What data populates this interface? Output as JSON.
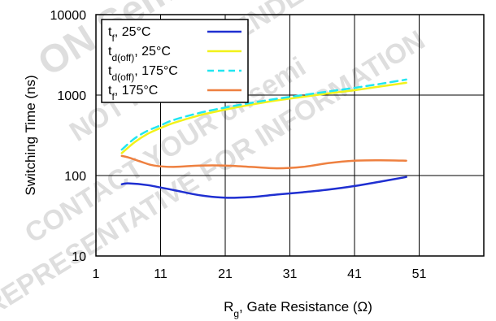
{
  "chart_data": {
    "type": "line",
    "xlabel": {
      "main": "R",
      "sub": "g",
      "rest": ", Gate Resistance (Ω)"
    },
    "ylabel": "Switching Time (ns)",
    "xlim": [
      1,
      61
    ],
    "ylim": [
      10,
      10000
    ],
    "yscale": "log",
    "grid": true,
    "legend_position": "top-left",
    "x_ticks": [
      1,
      11,
      21,
      31,
      41,
      51
    ],
    "y_ticks": [
      10,
      100,
      1000,
      10000
    ],
    "series": [
      {
        "name": "tf, 25°C",
        "legend": {
          "main": "t",
          "sub": "f",
          "rest": ", 25°C"
        },
        "color": "#1f2fd1",
        "dash": "solid",
        "x": [
          5,
          6,
          9,
          13,
          17,
          21,
          25,
          29,
          33,
          37,
          41,
          45,
          49
        ],
        "y": [
          78,
          80,
          76,
          66,
          57,
          53,
          54,
          58,
          62,
          67,
          74,
          84,
          96
        ]
      },
      {
        "name": "td(off), 25°C",
        "legend": {
          "main": "t",
          "sub": "d(off)",
          "rest": ", 25°C"
        },
        "color": "#f2f21a",
        "dash": "solid",
        "x": [
          5,
          7,
          9,
          11,
          13,
          17,
          21,
          25,
          29,
          33,
          37,
          41,
          45,
          49
        ],
        "y": [
          190,
          260,
          330,
          390,
          450,
          560,
          660,
          760,
          860,
          950,
          1050,
          1150,
          1280,
          1420
        ]
      },
      {
        "name": "td(off), 175°C",
        "legend": {
          "main": "t",
          "sub": "d(off)",
          "rest": ", 175°C"
        },
        "color": "#22e6f0",
        "dash": "dashed",
        "x": [
          5,
          7,
          9,
          11,
          13,
          17,
          21,
          25,
          29,
          33,
          37,
          41,
          45,
          49
        ],
        "y": [
          210,
          290,
          360,
          420,
          490,
          600,
          700,
          800,
          900,
          1000,
          1110,
          1230,
          1380,
          1560
        ]
      },
      {
        "name": "tf, 175°C",
        "legend": {
          "main": "t",
          "sub": "f",
          "rest": ", 175°C"
        },
        "color": "#ee8040",
        "dash": "solid",
        "x": [
          5,
          6,
          8,
          10,
          13,
          17,
          21,
          25,
          29,
          33,
          37,
          41,
          45,
          49
        ],
        "y": [
          175,
          168,
          148,
          133,
          128,
          133,
          133,
          128,
          123,
          128,
          143,
          153,
          155,
          153
        ]
      }
    ]
  },
  "watermark": {
    "lines": [
      "ON Semiconductor",
      "NOT RECOMMENDED",
      "CONTACT YOUR onsemi",
      "REPRESENTATIVE FOR INFORMATION"
    ],
    "color": "#d9d9d9"
  }
}
